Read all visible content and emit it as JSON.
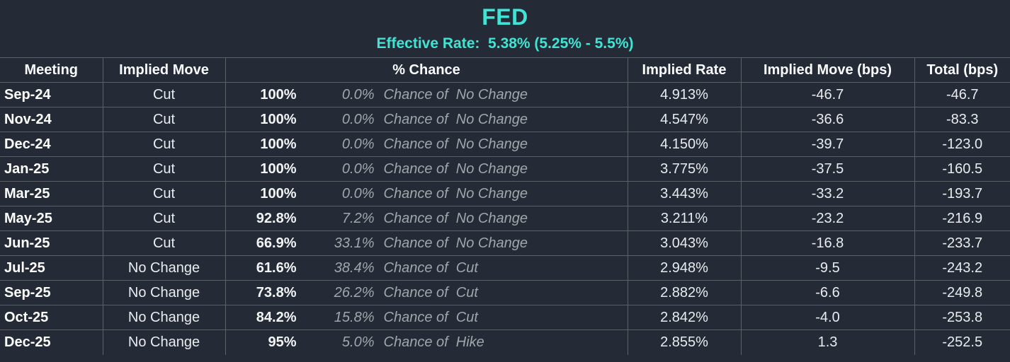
{
  "colors": {
    "background": "#242b36",
    "accent": "#40e4d4",
    "border": "#5d6167",
    "text": "#e9ebee",
    "muted_text": "#a2a6ab"
  },
  "header": {
    "title": "FED",
    "subtitle": "Effective Rate:  5.38% (5.25% - 5.5%)"
  },
  "table": {
    "columns": [
      "Meeting",
      "Implied Move",
      "% Chance",
      "Implied Rate",
      "Implied Move (bps)",
      "Total (bps)"
    ],
    "rows": [
      {
        "meeting": "Sep-24",
        "implied_move": "Cut",
        "chance_main": "100%",
        "chance_other": "0.0%",
        "chance_desc": "Chance of  No Change",
        "implied_rate": "4.913%",
        "implied_move_bps": "-46.7",
        "total_bps": "-46.7"
      },
      {
        "meeting": "Nov-24",
        "implied_move": "Cut",
        "chance_main": "100%",
        "chance_other": "0.0%",
        "chance_desc": "Chance of  No Change",
        "implied_rate": "4.547%",
        "implied_move_bps": "-36.6",
        "total_bps": "-83.3"
      },
      {
        "meeting": "Dec-24",
        "implied_move": "Cut",
        "chance_main": "100%",
        "chance_other": "0.0%",
        "chance_desc": "Chance of  No Change",
        "implied_rate": "4.150%",
        "implied_move_bps": "-39.7",
        "total_bps": "-123.0"
      },
      {
        "meeting": "Jan-25",
        "implied_move": "Cut",
        "chance_main": "100%",
        "chance_other": "0.0%",
        "chance_desc": "Chance of  No Change",
        "implied_rate": "3.775%",
        "implied_move_bps": "-37.5",
        "total_bps": "-160.5"
      },
      {
        "meeting": "Mar-25",
        "implied_move": "Cut",
        "chance_main": "100%",
        "chance_other": "0.0%",
        "chance_desc": "Chance of  No Change",
        "implied_rate": "3.443%",
        "implied_move_bps": "-33.2",
        "total_bps": "-193.7"
      },
      {
        "meeting": "May-25",
        "implied_move": "Cut",
        "chance_main": "92.8%",
        "chance_other": "7.2%",
        "chance_desc": "Chance of  No Change",
        "implied_rate": "3.211%",
        "implied_move_bps": "-23.2",
        "total_bps": "-216.9"
      },
      {
        "meeting": "Jun-25",
        "implied_move": "Cut",
        "chance_main": "66.9%",
        "chance_other": "33.1%",
        "chance_desc": "Chance of  No Change",
        "implied_rate": "3.043%",
        "implied_move_bps": "-16.8",
        "total_bps": "-233.7"
      },
      {
        "meeting": "Jul-25",
        "implied_move": "No Change",
        "chance_main": "61.6%",
        "chance_other": "38.4%",
        "chance_desc": "Chance of  Cut",
        "implied_rate": "2.948%",
        "implied_move_bps": "-9.5",
        "total_bps": "-243.2"
      },
      {
        "meeting": "Sep-25",
        "implied_move": "No Change",
        "chance_main": "73.8%",
        "chance_other": "26.2%",
        "chance_desc": "Chance of  Cut",
        "implied_rate": "2.882%",
        "implied_move_bps": "-6.6",
        "total_bps": "-249.8"
      },
      {
        "meeting": "Oct-25",
        "implied_move": "No Change",
        "chance_main": "84.2%",
        "chance_other": "15.8%",
        "chance_desc": "Chance of  Cut",
        "implied_rate": "2.842%",
        "implied_move_bps": "-4.0",
        "total_bps": "-253.8"
      },
      {
        "meeting": "Dec-25",
        "implied_move": "No Change",
        "chance_main": "95%",
        "chance_other": "5.0%",
        "chance_desc": "Chance of  Hike",
        "implied_rate": "2.855%",
        "implied_move_bps": "1.3",
        "total_bps": "-252.5"
      }
    ]
  }
}
